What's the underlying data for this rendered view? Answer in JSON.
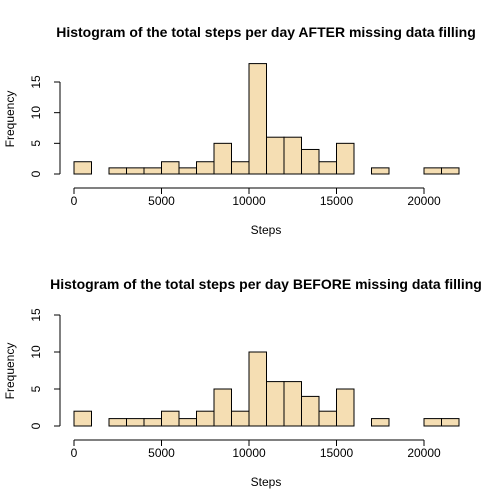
{
  "chart_data": [
    {
      "type": "bar",
      "title": "Histogram of the total steps per day AFTER missing data filling",
      "xlabel": "Steps",
      "ylabel": "Frequency",
      "bin_width": 1000,
      "x_bin_edges_start": 0,
      "counts": [
        2,
        0,
        1,
        1,
        1,
        2,
        1,
        2,
        5,
        2,
        18,
        6,
        6,
        4,
        2,
        5,
        0,
        1,
        0,
        0,
        1,
        1
      ],
      "xlim": [
        0,
        22000
      ],
      "ylim": [
        0,
        18
      ],
      "xticks": [
        0,
        5000,
        10000,
        15000,
        20000
      ],
      "yticks": [
        0,
        5,
        10,
        15
      ],
      "bar_color": "#F5DEB3"
    },
    {
      "type": "bar",
      "title": "Histogram of the total steps per day BEFORE missing data filling",
      "xlabel": "Steps",
      "ylabel": "Frequency",
      "bin_width": 1000,
      "x_bin_edges_start": 0,
      "counts": [
        2,
        0,
        1,
        1,
        1,
        2,
        1,
        2,
        5,
        2,
        10,
        6,
        6,
        4,
        2,
        5,
        0,
        1,
        0,
        0,
        1,
        1
      ],
      "xlim": [
        0,
        22000
      ],
      "ylim": [
        0,
        15
      ],
      "xticks": [
        0,
        5000,
        10000,
        15000,
        20000
      ],
      "yticks": [
        0,
        5,
        10,
        15
      ],
      "bar_color": "#F5DEB3"
    }
  ]
}
